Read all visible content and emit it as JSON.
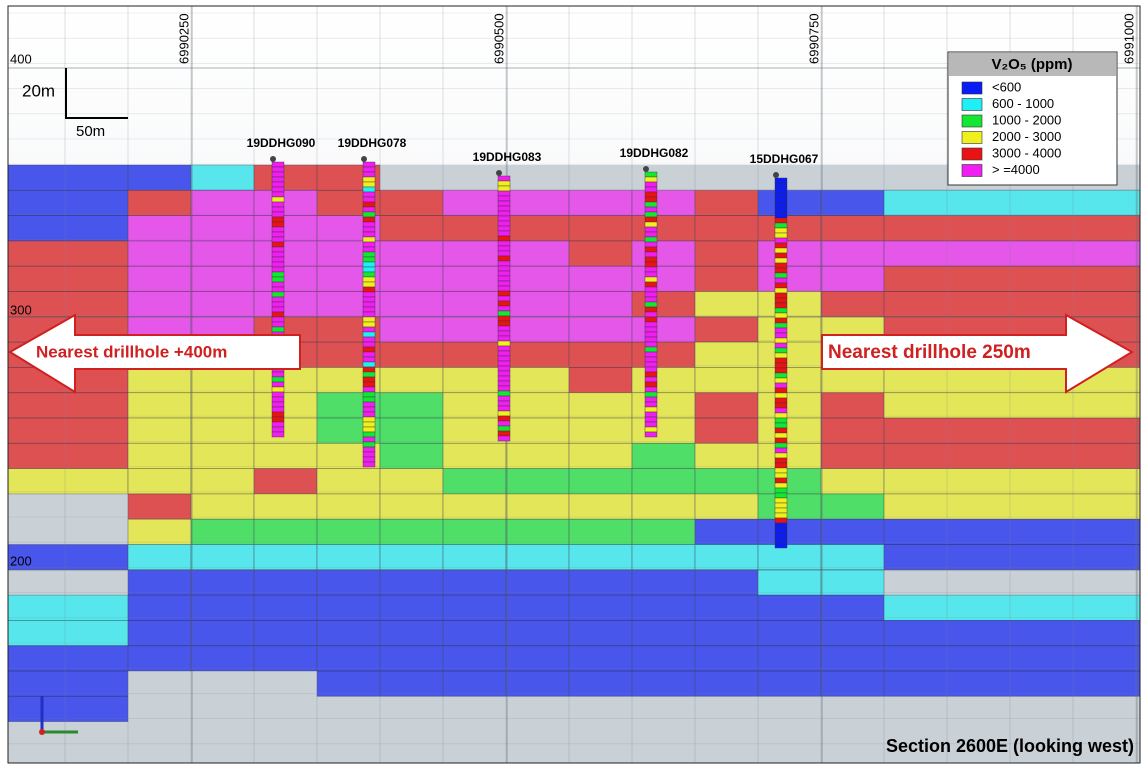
{
  "header": {
    "section_label": "Section 2600E (looking west)"
  },
  "northings": [
    "6990250",
    "6990500",
    "6990750",
    "6991000"
  ],
  "elevations": [
    "400",
    "300",
    "200"
  ],
  "scale_bar": {
    "vertical": "20m",
    "horizontal": "50m"
  },
  "drillholes": [
    "19DDHG090",
    "19DDHG078",
    "19DDHG083",
    "19DDHG082",
    "15DDHG067"
  ],
  "annotations": {
    "left": "Nearest drillhole +400m",
    "right": "Nearest drillhole 250m"
  },
  "legend": {
    "title": "V₂O₅ (ppm)",
    "items": [
      {
        "label": "<600",
        "color": "#0a1cf5"
      },
      {
        "label": "600 - 1000",
        "color": "#1ff0f5"
      },
      {
        "label": "1000 - 2000",
        "color": "#14e634"
      },
      {
        "label": "2000 - 3000",
        "color": "#f0f01e"
      },
      {
        "label": "3000 - 4000",
        "color": "#e81414"
      },
      {
        "label": "> =4000",
        "color": "#f01ef0"
      }
    ]
  }
}
